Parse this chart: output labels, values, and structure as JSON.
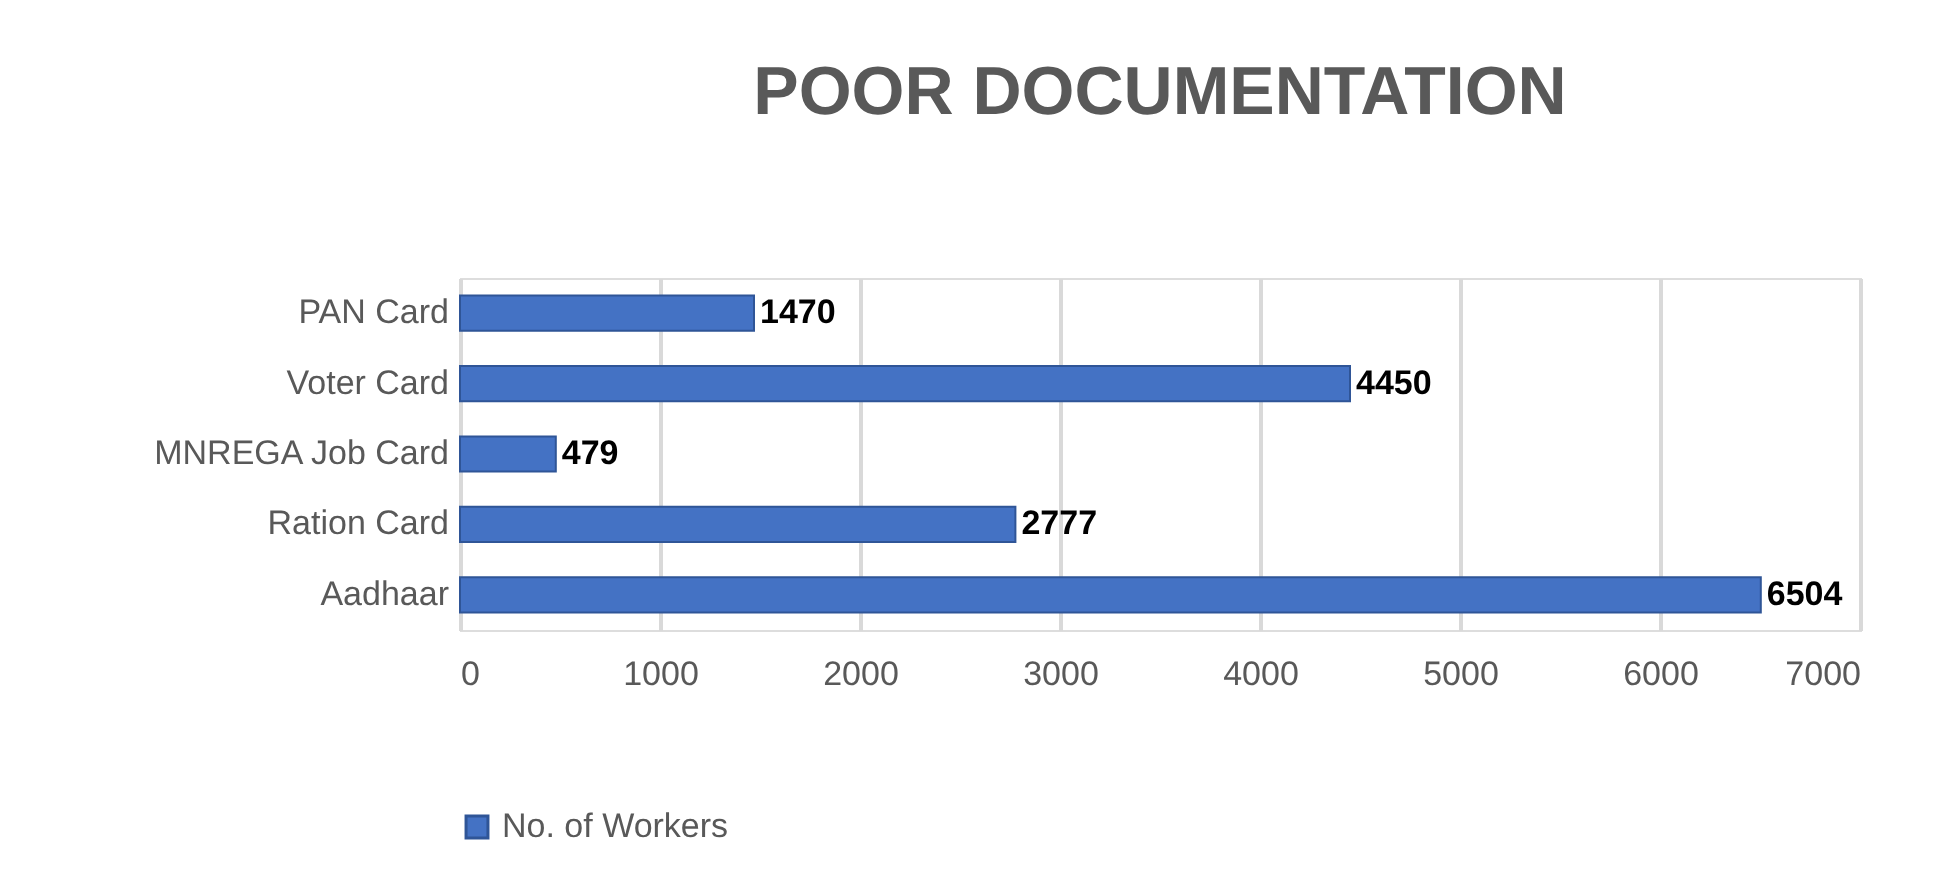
{
  "chart_data": {
    "type": "bar",
    "orientation": "horizontal",
    "title": "POOR DOCUMENTATION",
    "categories": [
      "PAN Card",
      "Voter Card",
      "MNREGA Job Card",
      "Ration Card",
      "Aadhaar"
    ],
    "series": [
      {
        "name": "No. of Workers",
        "color": "#4472c4",
        "values": [
          1470,
          4450,
          479,
          2777,
          6504
        ]
      }
    ],
    "xlim": [
      0,
      7000
    ],
    "xticks": [
      0,
      1000,
      2000,
      3000,
      4000,
      5000,
      6000,
      7000
    ],
    "grid": "x",
    "legend": "bottom",
    "data_labels": true
  }
}
